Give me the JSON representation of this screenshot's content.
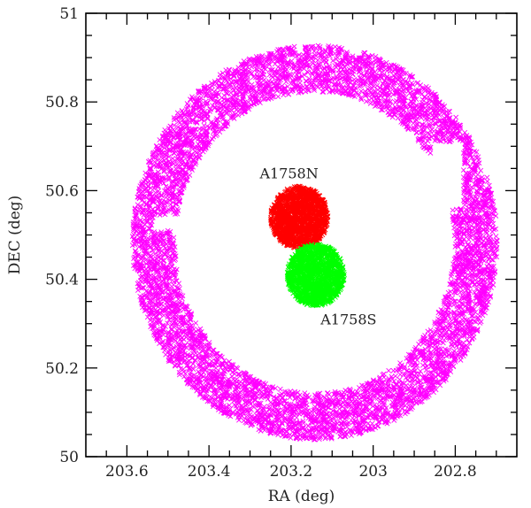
{
  "chart_data": {
    "type": "scatter",
    "title": "",
    "xlabel": "RA (deg)",
    "ylabel": "DEC (deg)",
    "xlim": [
      203.7,
      202.65
    ],
    "ylim": [
      50.0,
      51.0
    ],
    "x_reversed": true,
    "xticks": [
      203.6,
      203.4,
      203.2,
      203.0,
      202.8
    ],
    "xtick_labels": [
      "203.6",
      "203.4",
      "203.2",
      "203",
      "202.8"
    ],
    "yticks": [
      50.0,
      50.2,
      50.4,
      50.6,
      50.8,
      51.0
    ],
    "ytick_labels": [
      "50",
      "50.2",
      "50.4",
      "50.6",
      "50.8",
      "51"
    ],
    "grid": false,
    "series": [
      {
        "shape": "annulus",
        "color": "#ff00ff",
        "center": [
          203.142,
          50.483
        ],
        "inner_radius_deg": 0.34,
        "outer_radius_deg": 0.445,
        "gaps": [
          {
            "ra": [
              203.535,
              203.45
            ],
            "dec": [
              50.51,
              50.545
            ]
          },
          {
            "ra": [
              202.86,
              202.78
            ],
            "dec": [
              50.56,
              50.71
            ]
          }
        ]
      },
      {
        "shape": "disk",
        "color": "#ff0000",
        "center": [
          203.18,
          50.54
        ],
        "radius_deg": 0.07
      },
      {
        "shape": "disk",
        "color": "#00ff00",
        "center": [
          203.14,
          50.41
        ],
        "radius_deg": 0.07
      }
    ],
    "annotations": [
      {
        "text": "A1758N",
        "ra": 203.205,
        "dec": 50.64
      },
      {
        "text": "A1758S",
        "ra": 203.06,
        "dec": 50.31
      }
    ]
  }
}
